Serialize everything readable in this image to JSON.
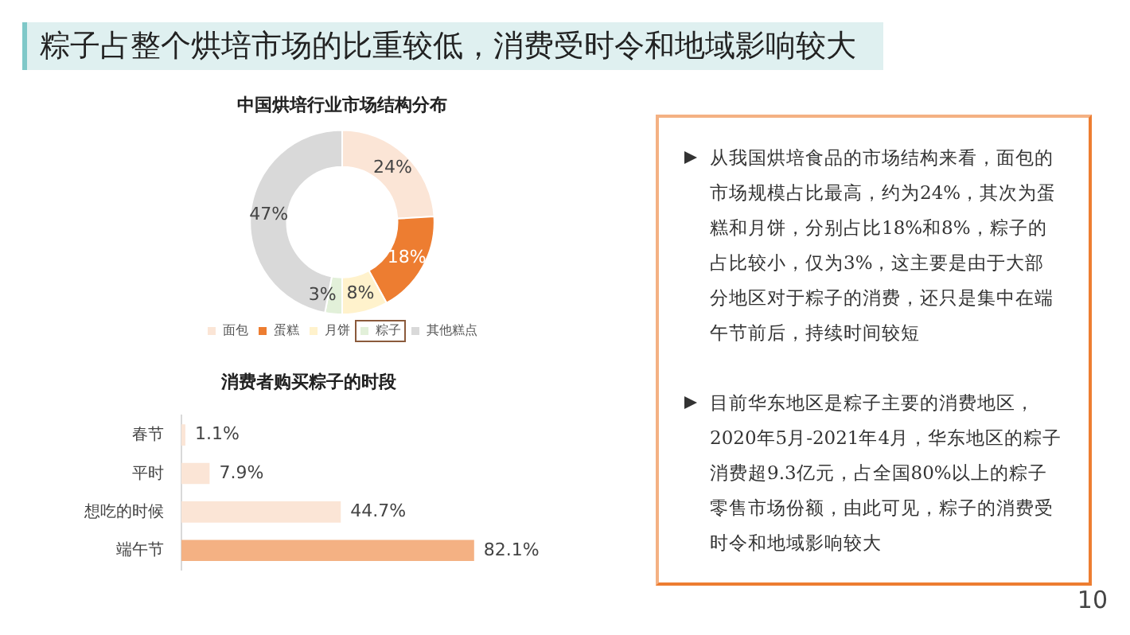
{
  "chart_data": [
    {
      "type": "other",
      "title": "粽子占整个烘培市场的比重较低，消费受时令和地域影响较大",
      "annotations": [
        "10"
      ]
    },
    {
      "type": "donut",
      "title": "中国烘培行业市场结构分布",
      "categories": [
        "面包",
        "蛋糕",
        "月饼",
        "粽子",
        "其他糕点"
      ],
      "values": [
        24,
        18,
        8,
        3,
        47
      ],
      "colors": [
        "#fbe5d6",
        "#ed7d31",
        "#fff2cc",
        "#e2f0d9",
        "#d9d9d9"
      ],
      "value_labels": [
        "24%",
        "18%",
        "8%",
        "3%",
        "47%"
      ],
      "legend": "bottom"
    },
    {
      "type": "bar",
      "orientation": "horizontal",
      "title": "消费者购买粽子的时段",
      "categories": [
        "春节",
        "平时",
        "想吃的时候",
        "端午节"
      ],
      "values": [
        1.1,
        7.9,
        44.7,
        82.1
      ],
      "colors": [
        "#fbe5d6",
        "#fbe5d6",
        "#fbe5d6",
        "#f4b183"
      ],
      "value_labels": [
        "1.1%",
        "7.9%",
        "44.7%",
        "82.1%"
      ],
      "legend": false
    },
    {
      "type": "other",
      "annotations": [
        "从我国烘培食品的市场结构来看，面包的市场规模占比最高，约为24%，其次为蛋糕和月饼，分别占比18%和8%，粽子的占比较小，仅为3%，这主要是由于大部分地区对于粽子的消费，还只是集中在端午节前后，持续时间较短",
        "目前华东地区是粽子主要的消费地区，2020年5月-2021年4月，华东地区的粽子消费超9.3亿元，占全国80%以上的粽子零售市场份额，由此可见，粽子的消费受时令和地域影响较大"
      ]
    }
  ]
}
